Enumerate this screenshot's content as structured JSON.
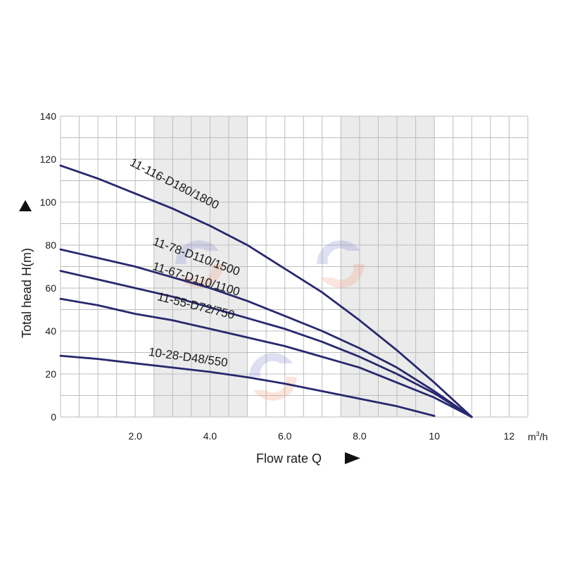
{
  "chart_data": {
    "type": "line",
    "xlabel": "Flow rate Q",
    "ylabel": "Total head H(m)",
    "x_unit": "m",
    "x_unit_sup": "3",
    "x_unit_suffix": "/h",
    "xlim": [
      0,
      12.5
    ],
    "ylim": [
      0,
      140
    ],
    "x_ticks": [
      {
        "value": 2,
        "label": "2.0"
      },
      {
        "value": 4,
        "label": "4.0"
      },
      {
        "value": 6,
        "label": "6.0"
      },
      {
        "value": 8,
        "label": "8.0"
      },
      {
        "value": 10,
        "label": "10"
      },
      {
        "value": 12,
        "label": "12"
      }
    ],
    "y_ticks": [
      {
        "value": 0,
        "label": "0"
      },
      {
        "value": 20,
        "label": "20"
      },
      {
        "value": 40,
        "label": "40"
      },
      {
        "value": 60,
        "label": "60"
      },
      {
        "value": 80,
        "label": "80"
      },
      {
        "value": 100,
        "label": "100"
      },
      {
        "value": 120,
        "label": "120"
      },
      {
        "value": 140,
        "label": "140"
      }
    ],
    "x_grid_step": 0.5,
    "y_grid_step": 10,
    "shaded_x_ranges": [
      [
        2.5,
        5.0
      ],
      [
        7.5,
        10.0
      ]
    ],
    "line_color": "#27286e",
    "grid": true,
    "series": [
      {
        "name": "11-116-D180/1800",
        "x": [
          0,
          1,
          2,
          3,
          4,
          5,
          6,
          7,
          8,
          9,
          10,
          11
        ],
        "y": [
          117,
          111,
          104,
          97,
          89,
          80,
          69,
          58,
          45,
          31,
          16,
          0
        ]
      },
      {
        "name": "11-78-D110/1500",
        "x": [
          0,
          1,
          2,
          3,
          4,
          5,
          6,
          7,
          8,
          9,
          10,
          11
        ],
        "y": [
          78,
          74,
          70,
          65,
          60,
          54,
          47,
          40,
          32,
          23,
          12,
          0
        ]
      },
      {
        "name": "11-67-D110/1100",
        "x": [
          0,
          1,
          2,
          3,
          4,
          5,
          6,
          7,
          8,
          9,
          10,
          11
        ],
        "y": [
          68,
          64,
          60,
          56,
          51,
          46,
          41,
          35,
          28,
          20,
          11,
          0
        ]
      },
      {
        "name": "11-55-D72/750",
        "x": [
          0,
          1,
          2,
          3,
          4,
          5,
          6,
          7,
          8,
          9,
          10,
          11
        ],
        "y": [
          55,
          52,
          48,
          45,
          41,
          37,
          33,
          28,
          23,
          16,
          9,
          0
        ]
      },
      {
        "name": "10-28-D48/550",
        "x": [
          0,
          1,
          2,
          3,
          4,
          5,
          6,
          7,
          8,
          9,
          10
        ],
        "y": [
          28.5,
          27,
          25,
          23,
          21,
          18.5,
          15.5,
          12,
          8.5,
          5,
          0.5
        ]
      }
    ],
    "series_labels": [
      {
        "series": 0,
        "x": 3.0,
        "y": 107,
        "angle": 27
      },
      {
        "series": 1,
        "x": 3.6,
        "y": 73,
        "angle": 20
      },
      {
        "series": 2,
        "x": 3.6,
        "y": 62.5,
        "angle": 17
      },
      {
        "series": 3,
        "x": 3.6,
        "y": 50,
        "angle": 14
      },
      {
        "series": 4,
        "x": 3.4,
        "y": 26,
        "angle": 8
      }
    ]
  }
}
